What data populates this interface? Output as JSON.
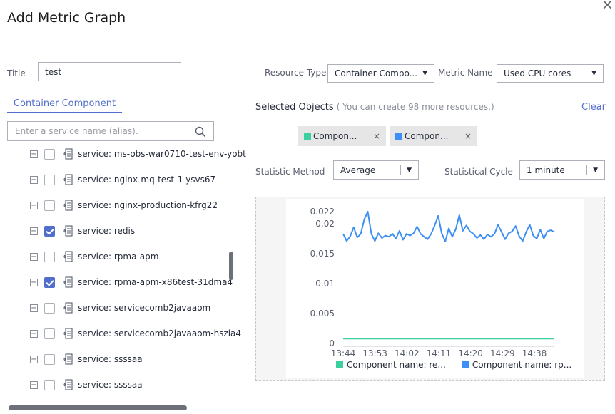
{
  "dialog": {
    "title": "Add Metric Graph",
    "close_symbol": "×"
  },
  "form": {
    "title_label": "Title",
    "title_value": "test",
    "resource_type_label": "Resource Type",
    "resource_type_value": "Container Compo...",
    "metric_name_label": "Metric Name",
    "metric_name_value": "Used CPU cores",
    "statistic_method_label": "Statistic Method",
    "statistic_method_value": "Average",
    "statistical_cycle_label": "Statistical Cycle",
    "statistical_cycle_value": "1 minute"
  },
  "left_panel": {
    "tab_label": "Container Component",
    "search_placeholder": "Enter a service name (alias).",
    "items": [
      {
        "label": "service: ms-obs-war0710-test-env-yobt",
        "checked": false
      },
      {
        "label": "service: nginx-mq-test-1-ysvs67",
        "checked": false
      },
      {
        "label": "service: nginx-production-kfrg22",
        "checked": false
      },
      {
        "label": "service: redis",
        "checked": true
      },
      {
        "label": "service: rpma-apm",
        "checked": false
      },
      {
        "label": "service: rpma-apm-x86test-31dma4",
        "checked": true
      },
      {
        "label": "service: servicecomb2javaaom",
        "checked": false
      },
      {
        "label": "service: servicecomb2javaaom-hszia4",
        "checked": false
      },
      {
        "label": "service: ssssaa",
        "checked": false
      },
      {
        "label": "service: ssssaa",
        "checked": false
      }
    ]
  },
  "right_panel": {
    "selected_label": "Selected Objects",
    "selected_hint": "( You can create 98 more resources.)",
    "clear_label": "Clear",
    "chips": [
      {
        "label": "Compon...",
        "color": "#3ecfa0",
        "remove": "×"
      },
      {
        "label": "Compon...",
        "color": "#3d8ef5",
        "remove": "×"
      }
    ]
  },
  "chart_data": {
    "type": "line",
    "x_ticks": [
      "13:44",
      "13:53",
      "14:02",
      "14:11",
      "14:20",
      "14:29",
      "14:38"
    ],
    "y_ticks": [
      "0",
      "0.005",
      "0.01",
      "0.015",
      "0.02",
      "0.022"
    ],
    "ylim": [
      0,
      0.022
    ],
    "series": [
      {
        "name": "Component name: re...",
        "color": "#3ecfa0",
        "values": [
          0.0008,
          0.0008,
          0.0008,
          0.0008,
          0.0008,
          0.0008,
          0.0008,
          0.0008,
          0.0008,
          0.0008,
          0.0008,
          0.0008,
          0.0008,
          0.0008,
          0.0008,
          0.0008,
          0.0008,
          0.0008,
          0.0008,
          0.0008,
          0.0008,
          0.0008,
          0.0008,
          0.0008,
          0.0008,
          0.0008,
          0.0008,
          0.0008,
          0.0008,
          0.0008,
          0.0008,
          0.0008,
          0.0008,
          0.0008,
          0.0008,
          0.0008,
          0.0008,
          0.0008,
          0.0008,
          0.0008,
          0.0008,
          0.0008,
          0.0008,
          0.0008,
          0.0008,
          0.0008,
          0.0008,
          0.0008,
          0.0008,
          0.0008,
          0.0008,
          0.0008,
          0.0008,
          0.0008,
          0.0008,
          0.0008,
          0.0008,
          0.0008,
          0.0008,
          0.0008,
          0.0008
        ]
      },
      {
        "name": "Component name: rp...",
        "color": "#3d8ef5",
        "values": [
          0.0183,
          0.0171,
          0.0179,
          0.0194,
          0.0177,
          0.0183,
          0.0207,
          0.022,
          0.0183,
          0.0171,
          0.0184,
          0.0176,
          0.018,
          0.0178,
          0.0183,
          0.0175,
          0.0188,
          0.0173,
          0.0183,
          0.018,
          0.0184,
          0.0195,
          0.0183,
          0.0178,
          0.0174,
          0.0183,
          0.0197,
          0.0213,
          0.0184,
          0.017,
          0.0192,
          0.0178,
          0.0191,
          0.0214,
          0.0188,
          0.0197,
          0.0187,
          0.0183,
          0.0176,
          0.0181,
          0.0174,
          0.0182,
          0.0178,
          0.0183,
          0.0198,
          0.0186,
          0.0174,
          0.0184,
          0.0187,
          0.0196,
          0.0179,
          0.0171,
          0.0186,
          0.0198,
          0.018,
          0.0175,
          0.019,
          0.0175,
          0.0187,
          0.0189,
          0.0186
        ]
      }
    ],
    "legend": [
      "Component name: re...",
      "Component name: rp..."
    ],
    "legend_placement": "bottom",
    "grid": false
  }
}
